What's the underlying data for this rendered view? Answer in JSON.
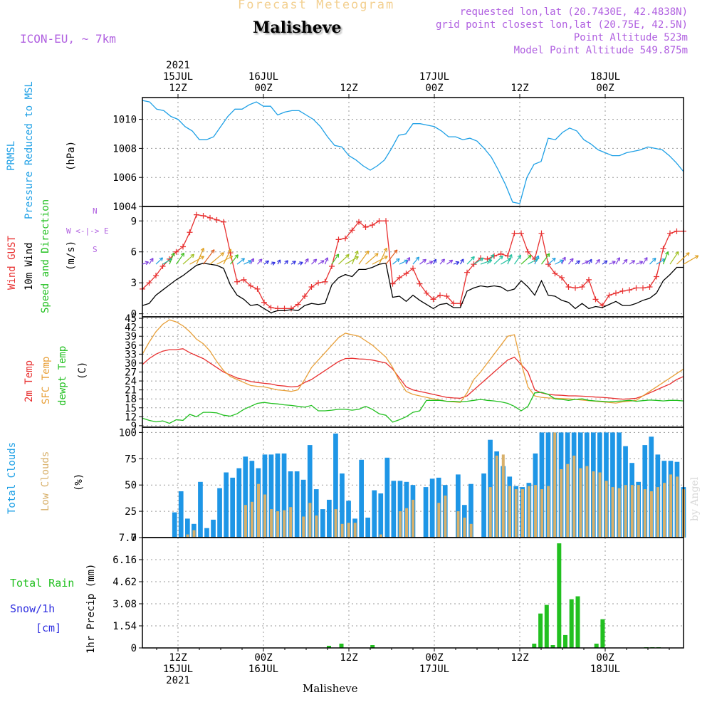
{
  "header": {
    "product": "Forecast Meteogram",
    "location": "Malisheve",
    "model": "ICON-EU, ~ 7km",
    "requested": "requested lon,lat (20.7430E, 42.4838N)",
    "gridpoint": "grid point closest lon,lat (20.75E, 42.5N)",
    "point_alt": "Point Altitude 523m",
    "model_alt": "Model Point Altitude 549.875m",
    "watermark": "by Angel",
    "footer_location": "Malisheve"
  },
  "time_axis": {
    "top": [
      {
        "t": 12,
        "lines": [
          "2021",
          "15JUL",
          "12Z"
        ]
      },
      {
        "t": 24,
        "lines": [
          "16JUL",
          "00Z"
        ]
      },
      {
        "t": 36,
        "lines": [
          "12Z"
        ]
      },
      {
        "t": 48,
        "lines": [
          "17JUL",
          "00Z"
        ]
      },
      {
        "t": 60,
        "lines": [
          "12Z"
        ]
      },
      {
        "t": 72,
        "lines": [
          "18JUL",
          "00Z"
        ]
      }
    ],
    "bottom": [
      {
        "t": 12,
        "lines": [
          "12Z",
          "15JUL",
          "2021"
        ]
      },
      {
        "t": 24,
        "lines": [
          "00Z",
          "16JUL"
        ]
      },
      {
        "t": 36,
        "lines": [
          "12Z"
        ]
      },
      {
        "t": 48,
        "lines": [
          "00Z",
          "17JUL"
        ]
      },
      {
        "t": 60,
        "lines": [
          "12Z"
        ]
      },
      {
        "t": 72,
        "lines": [
          "00Z",
          "18JUL"
        ]
      }
    ],
    "range_hours_since_15JUL00Z": [
      7,
      83
    ]
  },
  "panel_labels": {
    "pressure": {
      "name": "PRMSL",
      "desc": "Pressure Reduced to MSL",
      "unit": "(hPa)"
    },
    "wind": {
      "gust": "Wind GUST",
      "wind": "10m Wind",
      "dir": "Speed and Direction",
      "unit": "(m/s)",
      "rose_n": "N",
      "rose_s": "S",
      "rose_we": "W <-|-> E"
    },
    "temp": {
      "t2m": "2m Temp",
      "sfc": "SFC Temp",
      "dew": "dewpt Temp",
      "unit": "(C)"
    },
    "cloud": {
      "total": "Total Clouds",
      "low": "Low Clouds",
      "unit": "(%)"
    },
    "precip": {
      "rain": "Total  Rain",
      "snow": "Snow/1h",
      "snow_unit": "[cm]",
      "unit": "1hr Precip (mm)"
    }
  },
  "chart_data": [
    {
      "type": "line",
      "id": "pressure",
      "ylabel": "(hPa)",
      "ylim": [
        1004,
        1011.5
      ],
      "yticks": [
        "1004",
        "1006",
        "1008",
        "1010"
      ],
      "series": [
        {
          "name": "PRMSL",
          "color": "#1ea0e6",
          "values": [
            1011.3,
            1011.2,
            1010.7,
            1010.6,
            1010.2,
            1010.0,
            1009.5,
            1009.2,
            1008.6,
            1008.6,
            1008.8,
            1009.5,
            1010.2,
            1010.7,
            1010.7,
            1011.0,
            1011.2,
            1010.9,
            1010.9,
            1010.3,
            1010.5,
            1010.6,
            1010.6,
            1010.3,
            1010.0,
            1009.5,
            1008.8,
            1008.2,
            1008.1,
            1007.5,
            1007.2,
            1006.8,
            1006.5,
            1006.8,
            1007.2,
            1008.0,
            1008.9,
            1009.0,
            1009.7,
            1009.7,
            1009.6,
            1009.5,
            1009.2,
            1008.8,
            1008.8,
            1008.6,
            1008.7,
            1008.5,
            1008.0,
            1007.4,
            1006.5,
            1005.5,
            1004.3,
            1004.2,
            1006.0,
            1006.9,
            1007.1,
            1008.7,
            1008.6,
            1009.1,
            1009.4,
            1009.2,
            1008.6,
            1008.3,
            1007.9,
            1007.7,
            1007.5,
            1007.5,
            1007.7,
            1007.8,
            1007.9,
            1008.1,
            1008.0,
            1007.9,
            1007.5,
            1007.0,
            1006.4
          ]
        }
      ]
    },
    {
      "type": "line",
      "id": "wind",
      "ylabel": "(m/s)",
      "ylim": [
        -0.3,
        10.4
      ],
      "yticks": [
        "0",
        "3",
        "6",
        "9"
      ],
      "series": [
        {
          "name": "Wind GUST",
          "color": "#e83030",
          "values": [
            2.4,
            3.0,
            3.7,
            4.6,
            5.3,
            6.0,
            6.5,
            7.9,
            9.6,
            9.5,
            9.3,
            9.1,
            8.9,
            5.9,
            3.1,
            3.3,
            2.7,
            2.4,
            1.1,
            0.6,
            0.5,
            0.5,
            0.5,
            0.9,
            1.7,
            2.6,
            3.0,
            3.1,
            4.6,
            7.2,
            7.3,
            8.1,
            8.9,
            8.4,
            8.6,
            9.0,
            9.0,
            2.9,
            3.5,
            3.9,
            4.4,
            2.9,
            2.0,
            1.4,
            1.8,
            1.7,
            1.0,
            1.0,
            4.0,
            4.8,
            5.4,
            5.3,
            5.6,
            5.8,
            5.6,
            7.8,
            7.8,
            6.0,
            5.3,
            7.8,
            4.8,
            3.9,
            3.5,
            2.6,
            2.5,
            2.6,
            3.3,
            1.4,
            0.8,
            1.8,
            2.0,
            2.2,
            2.3,
            2.5,
            2.5,
            2.6,
            3.6,
            6.3,
            7.8,
            8.0,
            8.0
          ]
        },
        {
          "name": "10m Wind",
          "color": "#000000",
          "values": [
            0.8,
            1.0,
            1.8,
            2.3,
            2.8,
            3.3,
            3.7,
            4.2,
            4.7,
            4.9,
            4.8,
            4.7,
            4.4,
            2.8,
            1.8,
            1.4,
            0.8,
            0.9,
            0.5,
            0.1,
            0.3,
            0.3,
            0.4,
            0.3,
            0.8,
            1.0,
            0.9,
            1.0,
            2.8,
            3.5,
            3.8,
            3.6,
            4.3,
            4.3,
            4.5,
            4.8,
            4.9,
            1.6,
            1.7,
            1.2,
            1.8,
            1.3,
            0.9,
            0.5,
            0.9,
            1.0,
            0.6,
            0.6,
            2.2,
            2.5,
            2.7,
            2.6,
            2.7,
            2.6,
            2.2,
            2.4,
            3.2,
            2.6,
            1.8,
            3.2,
            1.8,
            1.7,
            1.3,
            1.1,
            0.5,
            1.0,
            0.5,
            0.7,
            0.6,
            0.9,
            1.2,
            0.8,
            0.8,
            1.0,
            1.3,
            1.5,
            2.0,
            3.2,
            3.8,
            4.5,
            4.5
          ]
        }
      ]
    },
    {
      "type": "line",
      "id": "temperature",
      "ylabel": "(C)",
      "ylim": [
        8.5,
        45.5
      ],
      "yticks": [
        "9",
        "12",
        "15",
        "18",
        "21",
        "24",
        "27",
        "30",
        "33",
        "36",
        "39",
        "42",
        "45"
      ],
      "series": [
        {
          "name": "2m Temp",
          "color": "#e83030",
          "values": [
            29.5,
            31.5,
            33.0,
            34.0,
            34.5,
            34.5,
            34.8,
            33.5,
            32.5,
            31.5,
            30.0,
            28.5,
            27.0,
            26.0,
            25.0,
            24.5,
            23.8,
            23.5,
            23.2,
            23.0,
            22.5,
            22.3,
            22.0,
            22.2,
            23.5,
            24.5,
            26.0,
            27.5,
            29.0,
            30.5,
            31.5,
            31.6,
            31.4,
            31.3,
            31.0,
            30.5,
            30.0,
            28.0,
            25.0,
            22.0,
            21.0,
            20.5,
            20.0,
            19.5,
            19.0,
            18.5,
            18.3,
            18.2,
            19.0,
            21.0,
            23.0,
            25.0,
            27.0,
            29.0,
            31.0,
            32.0,
            29.5,
            27.0,
            21.0,
            20.0,
            19.5,
            19.3,
            19.2,
            19.0,
            19.0,
            18.9,
            18.8,
            18.6,
            18.5,
            18.3,
            18.1,
            17.9,
            18.0,
            18.2,
            19.0,
            20.0,
            21.0,
            22.0,
            23.0,
            24.5,
            25.5
          ]
        },
        {
          "name": "SFC Temp",
          "color": "#e8a03a",
          "values": [
            33.0,
            37.0,
            40.5,
            43.0,
            44.5,
            43.8,
            42.5,
            40.5,
            38.0,
            36.5,
            34.0,
            30.5,
            27.5,
            25.5,
            24.5,
            23.5,
            22.5,
            22.2,
            22.0,
            21.5,
            21.0,
            20.8,
            20.5,
            21.0,
            24.5,
            28.5,
            31.0,
            33.5,
            36.0,
            38.5,
            40.0,
            39.5,
            39.0,
            37.5,
            36.0,
            34.0,
            32.0,
            28.5,
            24.0,
            20.5,
            19.5,
            19.0,
            18.5,
            18.0,
            17.6,
            17.2,
            17.0,
            16.8,
            20.0,
            24.5,
            27.0,
            30.0,
            33.0,
            36.0,
            39.0,
            39.5,
            30.0,
            22.0,
            19.0,
            18.5,
            18.3,
            18.2,
            18.1,
            18.0,
            17.8,
            17.6,
            17.4,
            17.2,
            17.0,
            16.8,
            16.6,
            17.0,
            17.2,
            17.5,
            19.0,
            20.5,
            22.0,
            23.5,
            25.0,
            26.5,
            28.0
          ]
        },
        {
          "name": "dewpt Temp",
          "color": "#22c020",
          "values": [
            11.5,
            10.8,
            10.3,
            10.6,
            9.8,
            11.0,
            10.8,
            12.8,
            12.0,
            13.5,
            13.5,
            13.3,
            12.5,
            12.2,
            13.0,
            14.5,
            15.5,
            16.5,
            16.8,
            16.5,
            16.3,
            16.0,
            15.8,
            15.5,
            15.2,
            15.8,
            14.0,
            14.0,
            14.2,
            14.5,
            14.5,
            14.2,
            14.5,
            15.5,
            14.5,
            13.0,
            12.5,
            10.2,
            11.0,
            12.0,
            13.5,
            14.0,
            17.5,
            17.5,
            17.5,
            17.2,
            17.2,
            17.0,
            17.2,
            17.5,
            17.8,
            17.5,
            17.3,
            17.0,
            16.5,
            15.5,
            14.0,
            15.5,
            20.0,
            20.2,
            19.5,
            18.0,
            17.8,
            17.5,
            17.8,
            18.0,
            17.5,
            17.3,
            17.2,
            17.0,
            17.2,
            17.3,
            17.5,
            17.2,
            17.4,
            17.6,
            17.5,
            17.3,
            17.5,
            17.5,
            17.3
          ]
        }
      ]
    },
    {
      "type": "bar",
      "id": "clouds",
      "ylabel": "(%)",
      "ylim": [
        0,
        105
      ],
      "yticks": [
        "0",
        "25",
        "50",
        "75",
        "100"
      ],
      "series": [
        {
          "name": "Total Clouds",
          "color": "#1e96e6",
          "values": [
            0,
            0,
            0,
            0,
            0,
            24,
            44,
            18,
            13,
            53,
            9,
            17,
            47,
            62,
            57,
            66,
            77,
            73,
            66,
            79,
            79,
            80,
            80,
            63,
            63,
            55,
            88,
            46,
            27,
            36,
            99,
            61,
            35,
            18,
            74,
            19,
            45,
            42,
            76,
            54,
            54,
            53,
            50,
            0,
            48,
            56,
            57,
            50,
            0,
            60,
            31,
            51,
            0,
            61,
            93,
            82,
            68,
            58,
            49,
            48,
            52,
            80,
            100,
            100,
            100,
            100,
            100,
            100,
            100,
            100,
            100,
            100,
            100,
            100,
            100,
            87,
            71,
            53,
            88,
            96,
            79,
            73,
            73,
            72,
            48
          ]
        },
        {
          "name": "Low Clouds",
          "color": "#d8b06a",
          "values": [
            0,
            0,
            0,
            0,
            0,
            0,
            0,
            3,
            7,
            0,
            0,
            0,
            0,
            0,
            0,
            0,
            31,
            34,
            51,
            41,
            27,
            25,
            26,
            29,
            0,
            20,
            33,
            21,
            0,
            0,
            27,
            13,
            14,
            14,
            0,
            0,
            0,
            3,
            0,
            0,
            25,
            28,
            36,
            0,
            0,
            0,
            33,
            40,
            0,
            25,
            19,
            13,
            0,
            0,
            48,
            78,
            79,
            49,
            46,
            46,
            49,
            50,
            46,
            49,
            100,
            65,
            70,
            78,
            66,
            68,
            63,
            62,
            54,
            48,
            47,
            50,
            50,
            50,
            46,
            44,
            48,
            52,
            60,
            58,
            46
          ]
        }
      ]
    },
    {
      "type": "bar",
      "id": "precip",
      "ylabel": "1hr Precip (mm)",
      "ylim": [
        0,
        7.7
      ],
      "yticks": [
        "0",
        "1.54",
        "3.08",
        "4.62",
        "6.16",
        "7.7"
      ],
      "series": [
        {
          "name": "Total  Rain",
          "color": "#22c020",
          "values": [
            0,
            0,
            0,
            0,
            0,
            0,
            0,
            0,
            0,
            0,
            0,
            0,
            0,
            0,
            0,
            0,
            0,
            0,
            0,
            0,
            0,
            0,
            0,
            0,
            0,
            0,
            0,
            0,
            0,
            0,
            0.15,
            0,
            0.3,
            0,
            0,
            0,
            0,
            0.2,
            0,
            0,
            0,
            0,
            0,
            0,
            0,
            0,
            0,
            0,
            0,
            0,
            0,
            0,
            0,
            0,
            0,
            0,
            0,
            0,
            0,
            0,
            0,
            0,
            0,
            0.3,
            2.4,
            3.0,
            0.2,
            7.3,
            0.9,
            3.4,
            3.6,
            0,
            0,
            0.3,
            2.0,
            0,
            0,
            0,
            0,
            0,
            0,
            0.05,
            0.05,
            0.05,
            0,
            0,
            0,
            0
          ]
        },
        {
          "name": "Snow/1h",
          "color": "#3030e0",
          "values": []
        }
      ]
    }
  ]
}
